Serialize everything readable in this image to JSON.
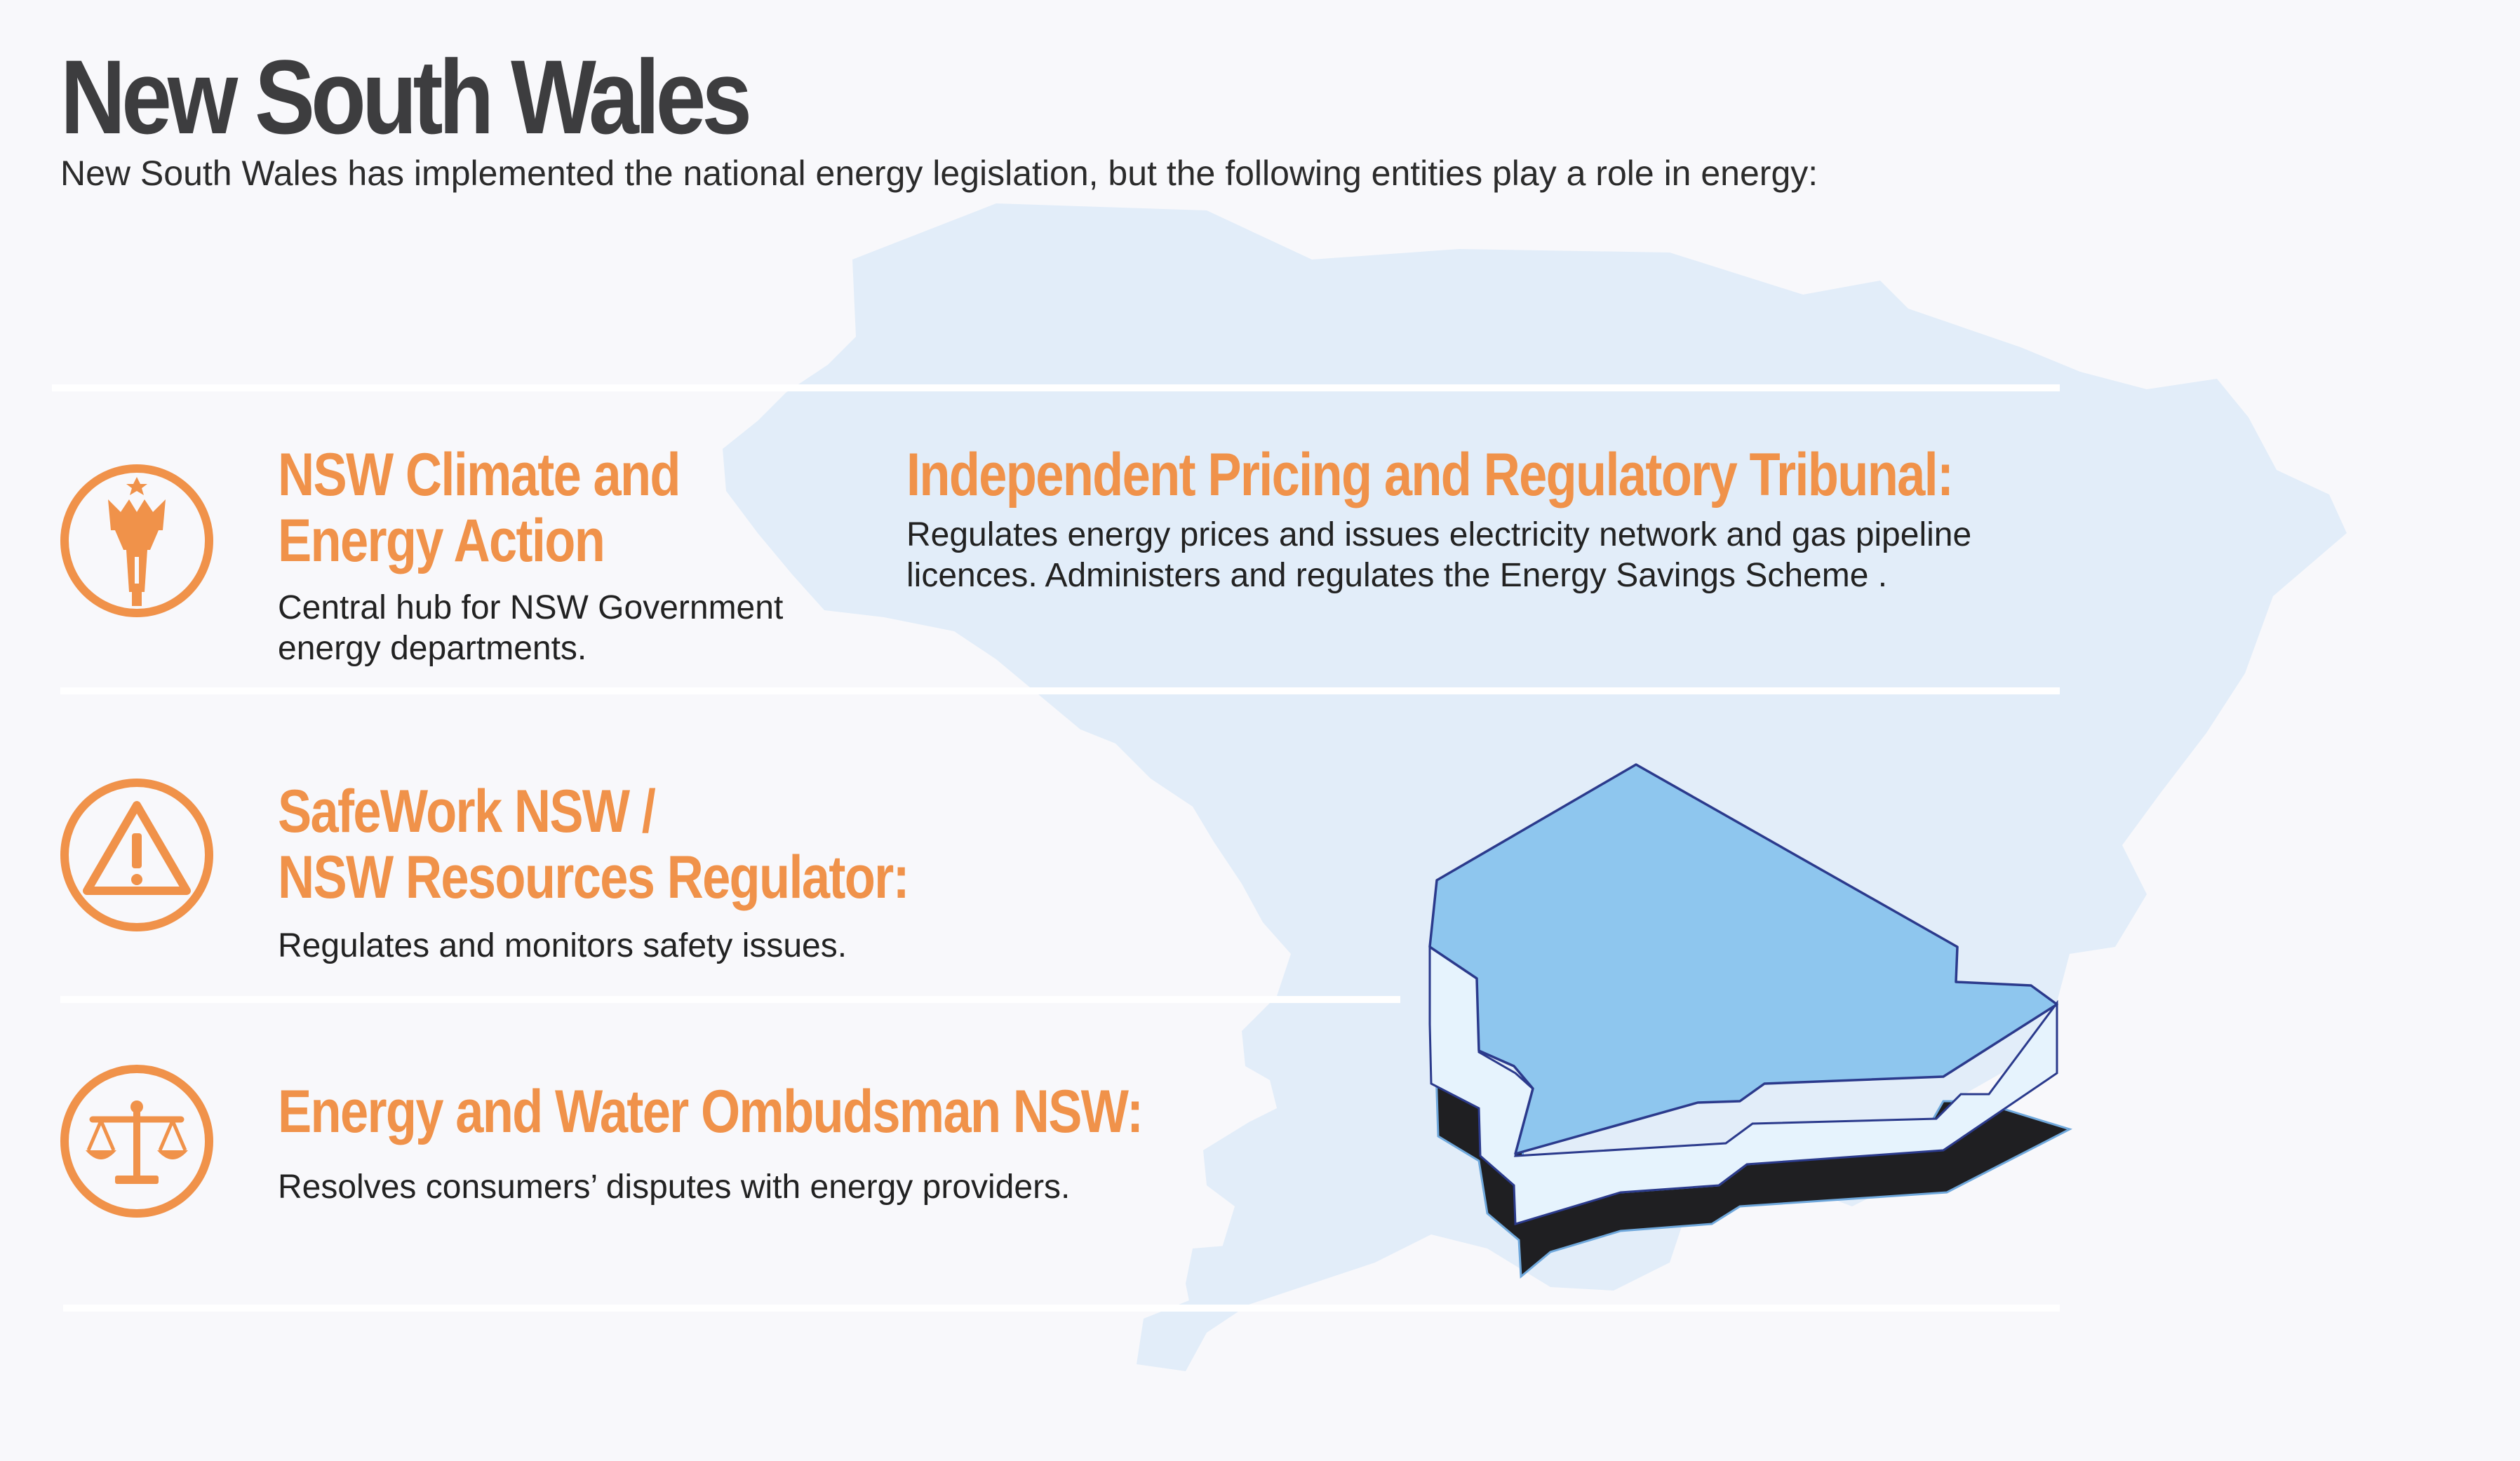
{
  "header": {
    "title": "New South Wales",
    "subtitle": "New South Wales has implemented the national energy legislation, but the following entities play a role in energy:"
  },
  "entities": [
    {
      "icon": "crown-torch-icon",
      "title_line1": "NSW Climate and",
      "title_line2": "Energy Action",
      "desc_line1": "Central hub for NSW Government",
      "desc_line2": "energy departments."
    },
    {
      "icon": "none",
      "title_line1": "Independent Pricing and Regulatory Tribunal:",
      "desc_line1": "Regulates energy prices and issues electricity network and gas pipeline",
      "desc_line2": "licences. Administers and regulates the Energy Savings Scheme ."
    },
    {
      "icon": "warning-triangle-icon",
      "title_line1": "SafeWork NSW /",
      "title_line2": "NSW Resources Regulator:",
      "desc_line1": "Regulates and monitors safety issues."
    },
    {
      "icon": "scales-of-justice-icon",
      "title_line1": "Energy and Water Ombudsman NSW:",
      "desc_line1": "Resolves consumers’ disputes with energy providers."
    }
  ],
  "colors": {
    "accent": "#f0924a",
    "title": "#3d3d3f",
    "map_background": "#e2edf9",
    "map_top": "#8ec6ee",
    "map_side": "#e6f3fd",
    "map_outline": "#2b3a8c",
    "map_shadow": "#1f1f22"
  }
}
